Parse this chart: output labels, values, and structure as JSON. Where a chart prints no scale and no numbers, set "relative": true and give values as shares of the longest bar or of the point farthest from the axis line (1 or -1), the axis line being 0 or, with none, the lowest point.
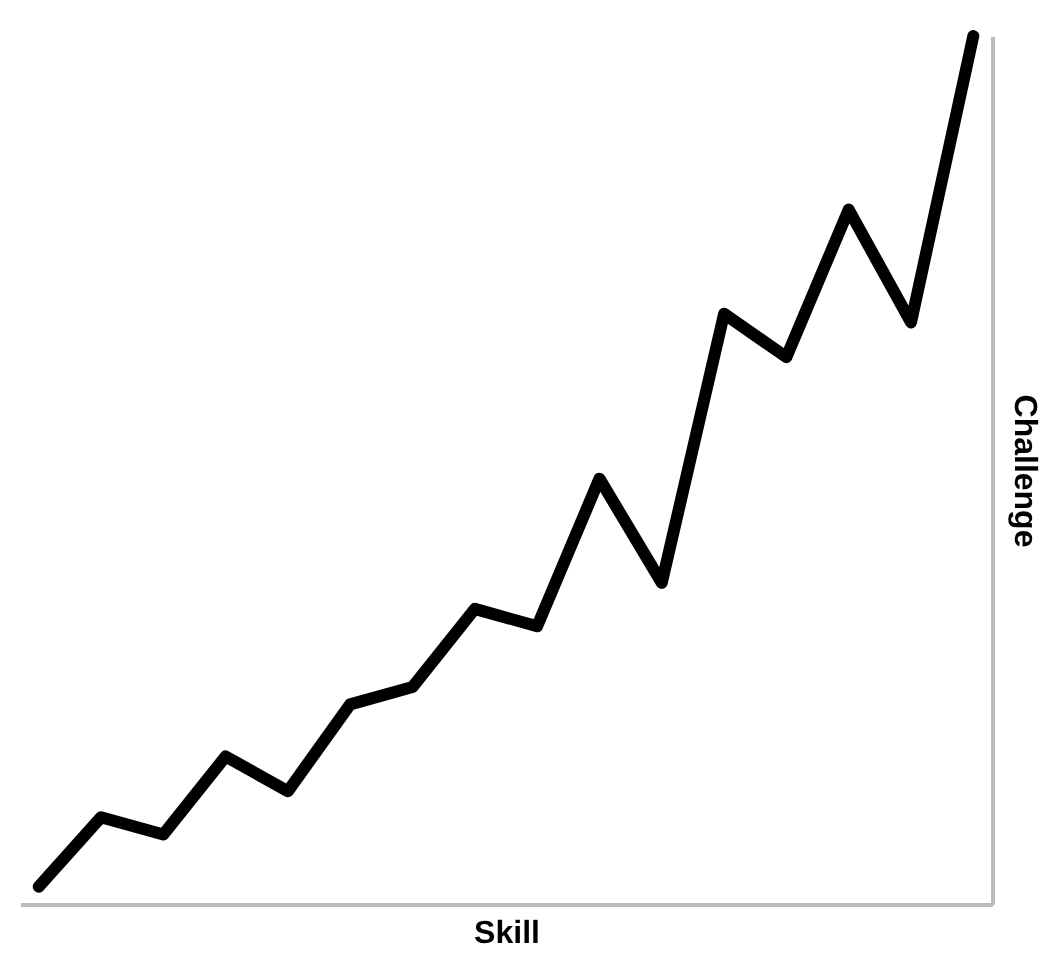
{
  "chart_data": {
    "type": "line",
    "relative": true,
    "xlabel": "Skill",
    "ylabel": "Challenge",
    "color": "#000000",
    "marker": "none",
    "line_style": "solid",
    "categories": [
      null,
      null,
      null,
      null,
      null,
      null,
      null,
      null,
      null,
      null,
      null,
      null,
      null,
      null,
      null,
      null
    ],
    "values": [
      0.02,
      0.1,
      0.08,
      0.17,
      0.13,
      0.23,
      0.25,
      0.34,
      0.32,
      0.49,
      0.37,
      0.68,
      0.63,
      0.8,
      0.67,
      1.0
    ]
  }
}
